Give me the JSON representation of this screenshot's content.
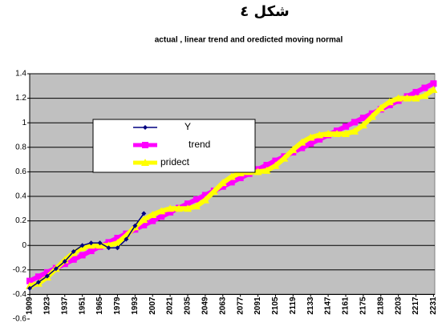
{
  "chart_data": {
    "type": "line",
    "title": "شكل ٤",
    "subtitle": "actual , linear trend and oredicted moving normal",
    "x": [
      1909,
      1916,
      1923,
      1930,
      1937,
      1944,
      1951,
      1958,
      1965,
      1972,
      1979,
      1986,
      1993,
      2000,
      2007,
      2014,
      2021,
      2028,
      2035,
      2042,
      2049,
      2056,
      2063,
      2070,
      2077,
      2084,
      2091,
      2098,
      2105,
      2112,
      2119,
      2126,
      2133,
      2140,
      2147,
      2154,
      2161,
      2168,
      2175,
      2182,
      2189,
      2196,
      2203,
      2210,
      2217,
      2224,
      2231
    ],
    "xlim": [
      1909,
      2232
    ],
    "xticks": [
      1909,
      1923,
      1937,
      1951,
      1965,
      1979,
      1993,
      2007,
      2021,
      2035,
      2049,
      2063,
      2077,
      2091,
      2105,
      2119,
      2133,
      2147,
      2161,
      2175,
      2189,
      2203,
      2217,
      2231
    ],
    "ylim": [
      -0.6,
      1.4
    ],
    "yticks": [
      -0.6,
      -0.4,
      -0.2,
      {
        "value": 0,
        "label": "0"
      },
      0.2,
      0.4,
      0.6,
      0.8,
      {
        "value": 1,
        "label": "1"
      },
      1.2,
      1.4
    ],
    "x_axis_crosses": -0.4,
    "grid": true,
    "legend": "center-left",
    "series": [
      {
        "name": "Y",
        "color": "#000080",
        "marker": "diamond",
        "values": [
          -0.35,
          -0.3,
          -0.25,
          -0.19,
          -0.13,
          -0.05,
          0.0,
          0.02,
          0.02,
          -0.02,
          -0.02,
          0.05,
          0.16,
          0.26,
          null,
          null,
          null,
          null,
          null,
          null,
          null,
          null,
          null,
          null,
          null,
          null,
          null,
          null,
          null,
          null,
          null,
          null,
          null,
          null,
          null,
          null,
          null,
          null,
          null,
          null,
          null,
          null,
          null,
          null,
          null,
          null,
          null
        ]
      },
      {
        "name": "trend",
        "color": "#ff00ff",
        "marker": "square",
        "values": [
          -0.29,
          -0.255,
          -0.22,
          -0.185,
          -0.15,
          -0.115,
          -0.08,
          -0.045,
          -0.01,
          0.025,
          0.06,
          0.095,
          0.13,
          0.165,
          0.2,
          0.235,
          0.27,
          0.305,
          0.34,
          0.375,
          0.41,
          0.445,
          0.48,
          0.515,
          0.55,
          0.585,
          0.62,
          0.655,
          0.69,
          0.725,
          0.76,
          0.795,
          0.83,
          0.865,
          0.9,
          0.935,
          0.97,
          1.005,
          1.04,
          1.075,
          1.11,
          1.145,
          1.18,
          1.215,
          1.25,
          1.285,
          1.32
        ]
      },
      {
        "name": "pridect",
        "color": "#ffff00",
        "marker": "triangle",
        "values": [
          -0.33,
          -0.31,
          -0.26,
          -0.19,
          -0.12,
          -0.06,
          -0.02,
          0.0,
          0.0,
          0.0,
          0.02,
          0.08,
          0.15,
          0.21,
          0.25,
          0.28,
          0.3,
          0.3,
          0.3,
          0.32,
          0.37,
          0.44,
          0.51,
          0.56,
          0.59,
          0.6,
          0.6,
          0.61,
          0.65,
          0.71,
          0.78,
          0.84,
          0.88,
          0.9,
          0.91,
          0.91,
          0.91,
          0.93,
          0.98,
          1.05,
          1.12,
          1.17,
          1.2,
          1.2,
          1.2,
          1.22,
          1.27
        ]
      }
    ]
  }
}
